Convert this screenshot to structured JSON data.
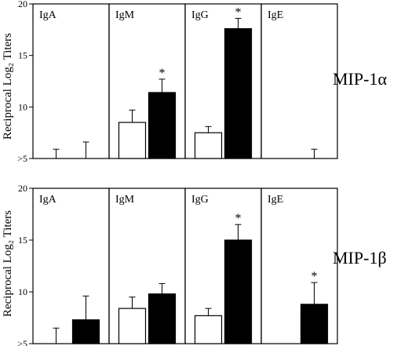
{
  "y_axis_label": "Reciprocal Log₂ Titers",
  "chart_data": [
    {
      "type": "bar",
      "title": "MIP-1α",
      "ylabel": "Reciprocal Log₂ Titers",
      "ylim": [
        5,
        20
      ],
      "yticks": [
        20,
        15,
        10,
        5
      ],
      "ytick_labels": [
        "20",
        "15",
        "10",
        ">5"
      ],
      "categories": [
        "IgA",
        "IgM",
        "IgG",
        "IgE"
      ],
      "series": [
        {
          "color": "#ffffff",
          "values": [
            5,
            8.5,
            7.5,
            5
          ],
          "errors": [
            0.9,
            1.2,
            0.6,
            0
          ]
        },
        {
          "color": "#000000",
          "values": [
            5,
            11.4,
            17.6,
            5
          ],
          "errors": [
            1.6,
            1.3,
            1.0,
            0.9
          ]
        }
      ],
      "significance": [
        "",
        "*",
        "*",
        ""
      ]
    },
    {
      "type": "bar",
      "title": "MIP-1β",
      "ylabel": "Reciprocal Log₂ Titers",
      "ylim": [
        5,
        20
      ],
      "yticks": [
        20,
        15,
        10,
        5
      ],
      "ytick_labels": [
        "20",
        "15",
        "10",
        ">5"
      ],
      "categories": [
        "IgA",
        "IgM",
        "IgG",
        "IgE"
      ],
      "series": [
        {
          "color": "#ffffff",
          "values": [
            5,
            8.4,
            7.7,
            5
          ],
          "errors": [
            1.5,
            1.1,
            0.7,
            0
          ]
        },
        {
          "color": "#000000",
          "values": [
            7.3,
            9.8,
            15.0,
            8.8
          ],
          "errors": [
            2.3,
            1.0,
            1.5,
            2.1
          ]
        }
      ],
      "significance": [
        "",
        "",
        "*",
        "*"
      ]
    }
  ]
}
